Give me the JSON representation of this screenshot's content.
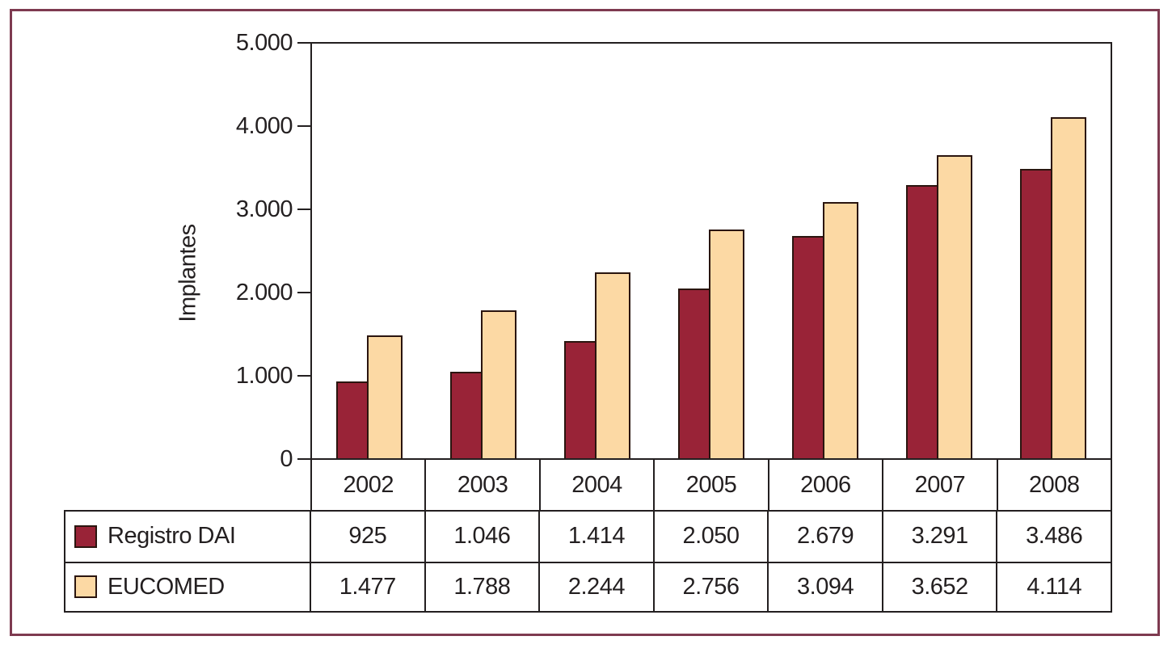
{
  "figure": {
    "background": "#ffffff",
    "frame_border_color": "#7E3A50"
  },
  "chart_data": {
    "type": "bar",
    "title": "",
    "xlabel": "",
    "ylabel": "Implantes",
    "ylim": [
      0,
      5000
    ],
    "grid": false,
    "legend_position": "table-below",
    "axis_color": "#231F20",
    "bar_outline_color": "#2A150F",
    "yticks": [
      {
        "value": 0,
        "label": "0"
      },
      {
        "value": 1000,
        "label": "1.000"
      },
      {
        "value": 2000,
        "label": "2.000"
      },
      {
        "value": 3000,
        "label": "3.000"
      },
      {
        "value": 4000,
        "label": "4.000"
      },
      {
        "value": 5000,
        "label": "5.000"
      }
    ],
    "categories": [
      "2002",
      "2003",
      "2004",
      "2005",
      "2006",
      "2007",
      "2008"
    ],
    "series": [
      {
        "name": "Registro DAI",
        "color": "#992337",
        "values": [
          925,
          1046,
          1414,
          2050,
          2679,
          3291,
          3486
        ],
        "display_values": [
          "925",
          "1.046",
          "1.414",
          "2.050",
          "2.679",
          "3.291",
          "3.486"
        ]
      },
      {
        "name": "EUCOMED",
        "color": "#FCD9A4",
        "values": [
          1477,
          1788,
          2244,
          2756,
          3094,
          3652,
          4114
        ],
        "display_values": [
          "1.477",
          "1.788",
          "2.244",
          "2.756",
          "3.094",
          "3.652",
          "4.114"
        ]
      }
    ]
  }
}
